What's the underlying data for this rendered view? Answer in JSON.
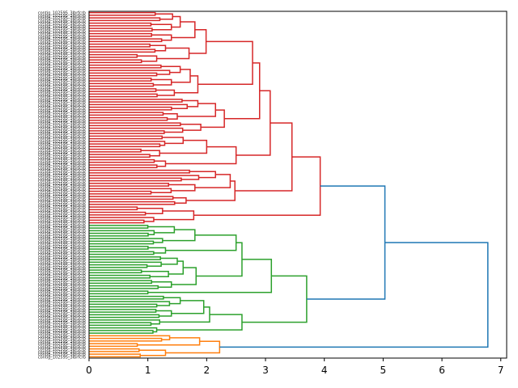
{
  "chart_data": {
    "type": "dendrogram",
    "orientation": "left",
    "title": "",
    "xlabel": "",
    "ylabel": "",
    "xlim": [
      0,
      7.1
    ],
    "x_ticks": [
      0,
      1,
      2,
      3,
      4,
      5,
      6,
      7
    ],
    "x_tick_labels": [
      "0",
      "1",
      "2",
      "3",
      "4",
      "5",
      "6",
      "7"
    ],
    "leaf_label_note": "~118 overlapping contig labels, illegible at this scale",
    "first_leaf_label": "contig_102595_3lbrfcrb",
    "colors": {
      "red": "#d62728",
      "green": "#2ca02c",
      "orange": "#ff7f0e",
      "blue": "#1f77b4"
    },
    "tree": {
      "h": 6.78,
      "c": "blue",
      "ch": [
        {
          "h": 5.03,
          "c": "blue",
          "ch": [
            {
              "h": 3.93,
              "c": "red",
              "ch": [
                {
                  "h": 3.45,
                  "c": "red",
                  "ch": [
                    {
                      "h": 3.08,
                      "c": "red",
                      "ch": [
                        {
                          "h": 2.9,
                          "c": "red",
                          "ch": [
                            {
                              "h": 2.78,
                              "c": "red",
                              "ch": [
                                {
                                  "h": 1.99,
                                  "c": "red",
                                  "ch": [
                                    {
                                      "h": 1.8,
                                      "c": "red",
                                      "ch": [
                                        {
                                          "h": 1.55,
                                          "c": "red",
                                          "ch": [
                                            {
                                              "h": 1.42,
                                              "n": 4
                                            },
                                            {
                                              "h": 1.4,
                                              "n": 4
                                            }
                                          ]
                                        },
                                        {
                                          "h": 1.4,
                                          "n": 4
                                        }
                                      ]
                                    },
                                    {
                                      "h": 1.7,
                                      "c": "red",
                                      "ch": [
                                        {
                                          "h": 1.3,
                                          "n": 4
                                        },
                                        {
                                          "h": 1.15,
                                          "n": 4
                                        }
                                      ]
                                    }
                                  ]
                                },
                                {
                                  "h": 1.85,
                                  "c": "red",
                                  "ch": [
                                    {
                                      "h": 1.72,
                                      "c": "red",
                                      "ch": [
                                        {
                                          "h": 1.55,
                                          "n": 5
                                        },
                                        {
                                          "h": 1.4,
                                          "n": 4
                                        }
                                      ]
                                    },
                                    {
                                      "h": 1.45,
                                      "n": 4
                                    }
                                  ]
                                }
                              ]
                            },
                            {
                              "h": 2.3,
                              "c": "red",
                              "ch": [
                                {
                                  "h": 2.15,
                                  "c": "red",
                                  "ch": [
                                    {
                                      "h": 1.85,
                                      "n": 5
                                    },
                                    {
                                      "h": 1.5,
                                      "n": 4
                                    }
                                  ]
                                },
                                {
                                  "h": 1.9,
                                  "n": 5
                                }
                              ]
                            }
                          ]
                        },
                        {
                          "h": 2.5,
                          "c": "red",
                          "ch": [
                            {
                              "h": 2.0,
                              "c": "red",
                              "ch": [
                                {
                                  "h": 1.6,
                                  "n": 5
                                },
                                {
                                  "h": 1.2,
                                  "n": 4
                                }
                              ]
                            },
                            {
                              "h": 1.3,
                              "n": 4
                            }
                          ]
                        }
                      ]
                    },
                    {
                      "h": 2.48,
                      "c": "red",
                      "ch": [
                        {
                          "h": 2.4,
                          "c": "red",
                          "ch": [
                            {
                              "h": 2.15,
                              "n": 5
                            },
                            {
                              "h": 1.8,
                              "n": 5
                            }
                          ]
                        },
                        {
                          "h": 1.65,
                          "n": 4
                        }
                      ]
                    }
                  ]
                },
                {
                  "h": 1.78,
                  "c": "red",
                  "ch": [
                    {
                      "h": 1.25,
                      "n": 4
                    },
                    {
                      "h": 1.1,
                      "n": 3
                    }
                  ]
                }
              ]
            },
            {
              "h": 3.7,
              "c": "green",
              "ch": [
                {
                  "h": 3.1,
                  "c": "green",
                  "ch": [
                    {
                      "h": 2.6,
                      "c": "green",
                      "ch": [
                        {
                          "h": 2.5,
                          "c": "green",
                          "ch": [
                            {
                              "h": 1.8,
                              "c": "green",
                              "ch": [
                                {
                                  "h": 1.45,
                                  "n": 5
                                },
                                {
                                  "h": 1.25,
                                  "n": 3
                                }
                              ]
                            },
                            {
                              "h": 1.3,
                              "n": 4
                            }
                          ]
                        },
                        {
                          "h": 1.82,
                          "c": "green",
                          "ch": [
                            {
                              "h": 1.6,
                              "c": "green",
                              "ch": [
                                {
                                  "h": 1.5,
                                  "n": 5
                                },
                                {
                                  "h": 1.35,
                                  "n": 4
                                }
                              ]
                            },
                            {
                              "h": 1.4,
                              "n": 4
                            }
                          ]
                        }
                      ]
                    },
                    {
                      "h": 1.0,
                      "n": 2
                    }
                  ]
                },
                {
                  "h": 2.6,
                  "c": "green",
                  "ch": [
                    {
                      "h": 2.05,
                      "c": "green",
                      "ch": [
                        {
                          "h": 1.95,
                          "c": "green",
                          "ch": [
                            {
                              "h": 1.55,
                              "n": 5
                            },
                            {
                              "h": 1.4,
                              "n": 4
                            }
                          ]
                        },
                        {
                          "h": 1.2,
                          "n": 3
                        }
                      ]
                    },
                    {
                      "h": 1.15,
                      "n": 3
                    }
                  ]
                }
              ]
            }
          ]
        },
        {
          "h": 2.22,
          "c": "orange",
          "ch": [
            {
              "h": 1.88,
              "c": "orange",
              "ch": [
                {
                  "h": 1.37,
                  "n": 3
                },
                {
                  "h": 0.82,
                  "n": 2
                }
              ]
            },
            {
              "h": 1.3,
              "c": "orange",
              "ch": [
                {
                  "h": 0.85,
                  "n": 2
                },
                {
                  "h": 0.87,
                  "n": 2
                }
              ]
            }
          ]
        }
      ]
    }
  }
}
